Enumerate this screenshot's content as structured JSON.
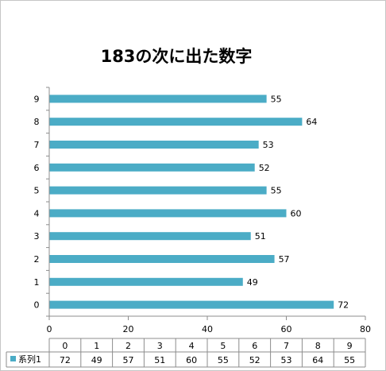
{
  "chart_data": {
    "type": "bar",
    "orientation": "horizontal",
    "title": "183の次に出た数字",
    "categories": [
      "0",
      "1",
      "2",
      "3",
      "4",
      "5",
      "6",
      "7",
      "8",
      "9"
    ],
    "series": [
      {
        "name": "系列1",
        "values": [
          72,
          49,
          57,
          51,
          60,
          55,
          52,
          53,
          64,
          55
        ]
      }
    ],
    "xlim": [
      0,
      80
    ],
    "x_ticks": [
      "0",
      "20",
      "40",
      "60",
      "80"
    ],
    "grid": false,
    "legend": "data-table-bottom",
    "data_table": true
  },
  "colors": {
    "bar": "#4bacc6",
    "axis": "#8c8c8c",
    "border": "#c6c6c6"
  }
}
